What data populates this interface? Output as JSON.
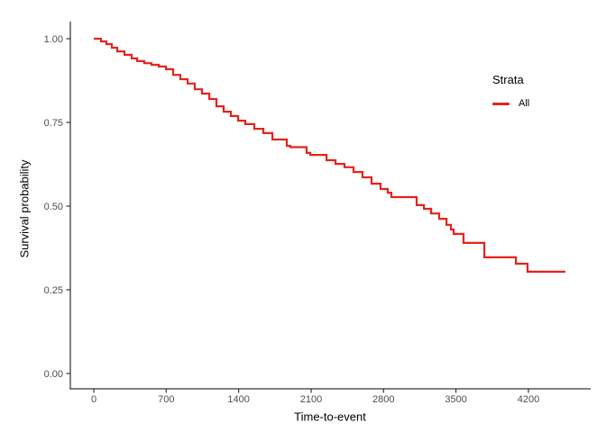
{
  "colors": {
    "curve": "#E3241D",
    "axis_line": "#333333",
    "tick_text": "#4D4D4D",
    "background": "#FFFFFF"
  },
  "chart_data": {
    "type": "line",
    "subtype": "kaplan-meier-step-curve",
    "title": "",
    "xlabel": "Time-to-event",
    "ylabel": "Survival probability",
    "xlim": [
      -230,
      4790
    ],
    "ylim": [
      -0.05,
      1.05
    ],
    "grid": false,
    "x_ticks": [
      0,
      700,
      1400,
      2100,
      2800,
      3500,
      4200
    ],
    "x_tick_labels": [
      "0",
      "700",
      "1400",
      "2100",
      "2800",
      "3500",
      "4200"
    ],
    "y_ticks": [
      0,
      0.25,
      0.5,
      0.75,
      1.0
    ],
    "y_tick_labels": [
      "0.00",
      "0.25",
      "0.50",
      "0.75",
      "1.00"
    ],
    "legend": {
      "title": "Strata",
      "position": "right",
      "entries": [
        {
          "label": "All",
          "color": "#E3241D"
        }
      ]
    },
    "series": [
      {
        "name": "All",
        "color": "#E3241D",
        "points": [
          [
            0,
            1.0
          ],
          [
            70,
            0.992
          ],
          [
            122,
            0.984
          ],
          [
            174,
            0.973
          ],
          [
            227,
            0.962
          ],
          [
            296,
            0.952
          ],
          [
            366,
            0.941
          ],
          [
            418,
            0.933
          ],
          [
            488,
            0.927
          ],
          [
            558,
            0.922
          ],
          [
            628,
            0.917
          ],
          [
            697,
            0.909
          ],
          [
            767,
            0.892
          ],
          [
            837,
            0.879
          ],
          [
            906,
            0.866
          ],
          [
            976,
            0.849
          ],
          [
            1046,
            0.836
          ],
          [
            1116,
            0.82
          ],
          [
            1185,
            0.798
          ],
          [
            1255,
            0.782
          ],
          [
            1325,
            0.769
          ],
          [
            1394,
            0.755
          ],
          [
            1464,
            0.745
          ],
          [
            1551,
            0.731
          ],
          [
            1638,
            0.718
          ],
          [
            1726,
            0.699
          ],
          [
            1865,
            0.68
          ],
          [
            1900,
            0.676
          ],
          [
            2057,
            0.659
          ],
          [
            2092,
            0.653
          ],
          [
            2249,
            0.637
          ],
          [
            2336,
            0.626
          ],
          [
            2423,
            0.616
          ],
          [
            2510,
            0.602
          ],
          [
            2597,
            0.586
          ],
          [
            2684,
            0.567
          ],
          [
            2771,
            0.551
          ],
          [
            2841,
            0.54
          ],
          [
            2876,
            0.527
          ],
          [
            3120,
            0.503
          ],
          [
            3190,
            0.492
          ],
          [
            3260,
            0.478
          ],
          [
            3338,
            0.462
          ],
          [
            3408,
            0.444
          ],
          [
            3451,
            0.43
          ],
          [
            3477,
            0.417
          ],
          [
            3573,
            0.39
          ],
          [
            3774,
            0.347
          ],
          [
            4079,
            0.328
          ],
          [
            4192,
            0.304
          ],
          [
            4558,
            0.304
          ]
        ]
      }
    ]
  }
}
